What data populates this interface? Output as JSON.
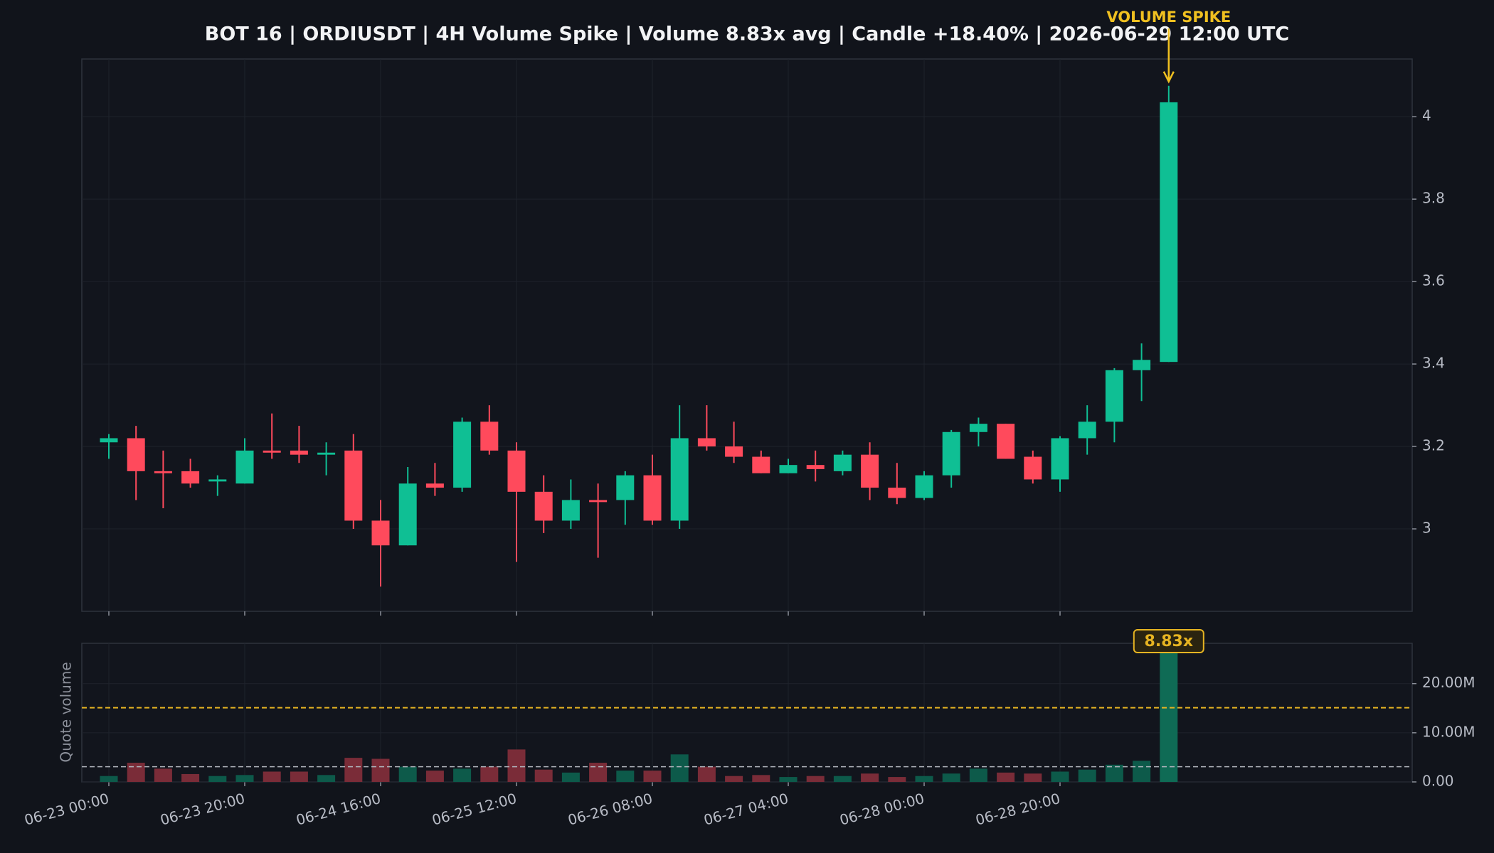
{
  "chart_data": [
    {
      "type": "candlestick",
      "title": "BOT 16 | ORDIUSDT | 4H Volume Spike | Volume 8.83x avg | Candle +18.40% | 2026-06-29 12:00 UTC",
      "x": [
        "06-23 00:00",
        null,
        null,
        null,
        null,
        "06-23 20:00",
        null,
        null,
        null,
        null,
        "06-24 16:00",
        null,
        null,
        null,
        null,
        "06-25 12:00",
        null,
        null,
        null,
        null,
        "06-26 08:00",
        null,
        null,
        null,
        null,
        "06-27 04:00",
        null,
        null,
        null,
        null,
        "06-28 00:00",
        null,
        null,
        null,
        null,
        "06-28 20:00",
        null,
        null,
        null,
        null
      ],
      "open": [
        3.21,
        3.22,
        3.14,
        3.14,
        3.115,
        3.11,
        3.19,
        3.19,
        3.18,
        3.19,
        3.02,
        2.96,
        3.11,
        3.1,
        3.26,
        3.19,
        3.09,
        3.02,
        3.07,
        3.07,
        3.13,
        3.02,
        3.22,
        3.2,
        3.175,
        3.135,
        3.155,
        3.14,
        3.18,
        3.1,
        3.075,
        3.13,
        3.235,
        3.255,
        3.175,
        3.12,
        3.22,
        3.26,
        3.385,
        3.405
      ],
      "high": [
        3.23,
        3.25,
        3.19,
        3.17,
        3.13,
        3.22,
        3.28,
        3.25,
        3.21,
        3.23,
        3.07,
        3.15,
        3.16,
        3.27,
        3.3,
        3.21,
        3.13,
        3.12,
        3.11,
        3.14,
        3.18,
        3.3,
        3.3,
        3.26,
        3.19,
        3.17,
        3.19,
        3.19,
        3.21,
        3.16,
        3.14,
        3.24,
        3.27,
        3.255,
        3.19,
        3.225,
        3.3,
        3.39,
        3.45,
        4.075
      ],
      "low": [
        3.17,
        3.07,
        3.05,
        3.1,
        3.08,
        3.11,
        3.17,
        3.16,
        3.13,
        3.0,
        2.86,
        2.96,
        3.08,
        3.09,
        3.18,
        2.92,
        2.99,
        3.0,
        2.93,
        3.01,
        3.01,
        3.0,
        3.19,
        3.16,
        3.135,
        3.135,
        3.115,
        3.13,
        3.07,
        3.06,
        3.07,
        3.1,
        3.2,
        3.17,
        3.11,
        3.09,
        3.18,
        3.21,
        3.31,
        3.405
      ],
      "close": [
        3.22,
        3.14,
        3.135,
        3.11,
        3.12,
        3.19,
        3.185,
        3.18,
        3.185,
        3.02,
        2.96,
        3.11,
        3.1,
        3.26,
        3.19,
        3.09,
        3.02,
        3.07,
        3.065,
        3.13,
        3.02,
        3.22,
        3.2,
        3.175,
        3.135,
        3.155,
        3.145,
        3.18,
        3.1,
        3.075,
        3.13,
        3.235,
        3.255,
        3.17,
        3.12,
        3.22,
        3.26,
        3.385,
        3.41,
        4.035
      ],
      "up_color": "#0fbf94",
      "down_color": "#ff4a5c",
      "ylim": [
        2.8,
        4.14
      ],
      "yticks": [
        3,
        3.2,
        3.4,
        3.6,
        3.8,
        4
      ],
      "grid": true,
      "annotation": "VOLUME SPIKE",
      "annotation_color": "#f0c020"
    },
    {
      "type": "bar",
      "ylabel": "Quote volume",
      "values": [
        1.2,
        3.9,
        2.7,
        1.6,
        1.2,
        1.4,
        2.1,
        2.1,
        1.4,
        4.9,
        4.7,
        3.1,
        2.3,
        2.7,
        3.1,
        6.6,
        2.5,
        1.9,
        3.9,
        2.3,
        2.3,
        5.6,
        3.1,
        1.2,
        1.4,
        1.0,
        1.2,
        1.2,
        1.7,
        1.0,
        1.2,
        1.7,
        2.7,
        1.9,
        1.7,
        2.1,
        2.5,
        3.5,
        4.3,
        27.4
      ],
      "up_color": "#0d5a4a",
      "down_color": "#7a2c38",
      "spike_color": "#0f6b55",
      "ylim": [
        0,
        28.2
      ],
      "yticks": [
        {
          "value": 0,
          "label": "0.00"
        },
        {
          "value": 10,
          "label": "10.00M"
        },
        {
          "value": 20,
          "label": "20.00M"
        }
      ],
      "average": 3.1,
      "average_color": "#b0b4bc",
      "threshold": 15.1,
      "threshold_color": "#e6b422",
      "ratio_label": "8.83x",
      "grid": true
    }
  ]
}
